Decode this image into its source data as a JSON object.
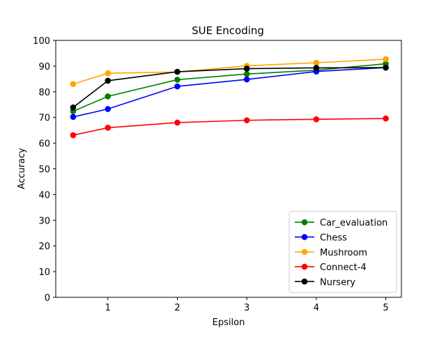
{
  "chart_data": {
    "type": "line",
    "title": "SUE Encoding",
    "xlabel": "Epsilon",
    "ylabel": "Accuracy",
    "x": [
      0.5,
      1,
      2,
      3,
      4,
      5
    ],
    "xlim": [
      0.25,
      5.225
    ],
    "ylim": [
      0,
      100
    ],
    "xticks": [
      1,
      2,
      3,
      4,
      5
    ],
    "yticks": [
      0,
      10,
      20,
      30,
      40,
      50,
      60,
      70,
      80,
      90,
      100
    ],
    "grid": false,
    "legend_position": "lower-right",
    "series": [
      {
        "name": "Car_evaluation",
        "color": "#008000",
        "values": [
          72.4,
          78.2,
          84.7,
          86.9,
          88.4,
          90.9
        ]
      },
      {
        "name": "Chess",
        "color": "#0000ff",
        "values": [
          70.2,
          73.3,
          82.1,
          84.8,
          87.9,
          89.4
        ]
      },
      {
        "name": "Mushroom",
        "color": "#ffa500",
        "values": [
          83.0,
          87.2,
          87.7,
          90.1,
          91.3,
          92.7
        ]
      },
      {
        "name": "Connect-4",
        "color": "#ff0000",
        "values": [
          63.1,
          66.0,
          68.0,
          68.9,
          69.3,
          69.6
        ]
      },
      {
        "name": "Nursery",
        "color": "#000000",
        "values": [
          73.9,
          84.3,
          87.8,
          89.0,
          89.3,
          89.4
        ]
      }
    ]
  }
}
